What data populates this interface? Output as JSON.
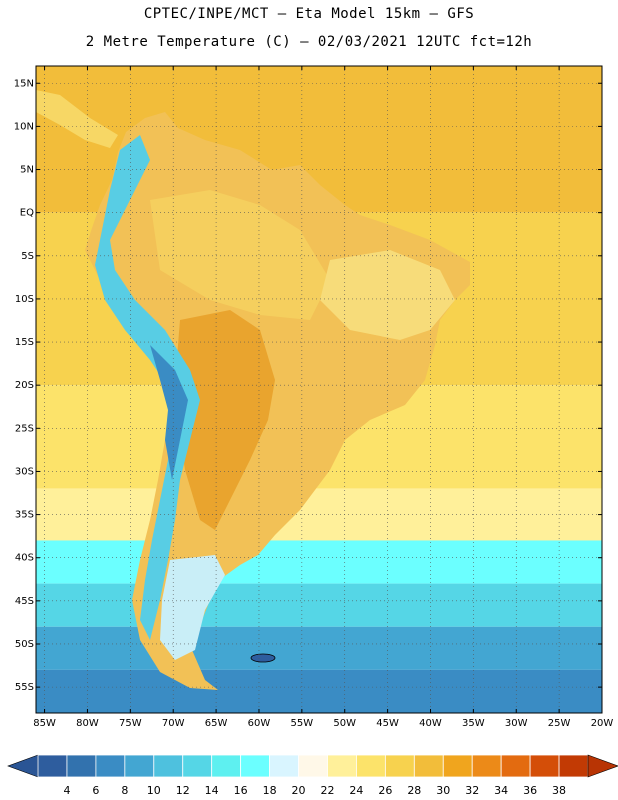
{
  "title_line1": "CPTEC/INPE/MCT –  Eta Model 15km – GFS",
  "title_line2": "2 Metre Temperature (C) – 02/03/2021 12UTC fct=12h",
  "map": {
    "lat_labels": [
      "15N",
      "10N",
      "5N",
      "EQ",
      "5S",
      "10S",
      "15S",
      "20S",
      "25S",
      "30S",
      "35S",
      "40S",
      "45S",
      "50S",
      "55S"
    ],
    "lon_labels": [
      "85W",
      "80W",
      "75W",
      "70W",
      "65W",
      "60W",
      "55W",
      "50W",
      "45W",
      "40W",
      "35W",
      "30W",
      "25W",
      "20W"
    ],
    "lat_range": [
      17,
      -58
    ],
    "lon_range": [
      -86,
      -20
    ],
    "gridlines": "dotted",
    "ocean_bands": [
      {
        "lat_from": 17,
        "lat_to": 0,
        "value": "28"
      },
      {
        "lat_from": 0,
        "lat_to": -20,
        "value": "26"
      },
      {
        "lat_from": -20,
        "lat_to": -32,
        "value": "24"
      },
      {
        "lat_from": -32,
        "lat_to": -38,
        "value": "22"
      },
      {
        "lat_from": -38,
        "lat_to": -43,
        "value": "16"
      },
      {
        "lat_from": -43,
        "lat_to": -48,
        "value": "12"
      },
      {
        "lat_from": -48,
        "lat_to": -53,
        "value": "8"
      },
      {
        "lat_from": -53,
        "lat_to": -58,
        "value": "6"
      }
    ]
  },
  "colorbar": {
    "labels": [
      "4",
      "6",
      "8",
      "10",
      "12",
      "14",
      "16",
      "18",
      "20",
      "22",
      "24",
      "26",
      "28",
      "30",
      "32",
      "34",
      "36",
      "38"
    ],
    "colors": [
      "#2e5d9e",
      "#3272ae",
      "#3a8cc4",
      "#43a6d2",
      "#4ec1de",
      "#55d6e6",
      "#5ef0f0",
      "#6bffff",
      "#d9f5ff",
      "#fff8e8",
      "#fff09a",
      "#fce36a",
      "#f7d24e",
      "#f2bd3a",
      "#f0a51e",
      "#ec8a18",
      "#e36b10",
      "#d44e08",
      "#c23a04"
    ],
    "underflow_color": "#2a5595",
    "overflow_color": "#b83404"
  }
}
